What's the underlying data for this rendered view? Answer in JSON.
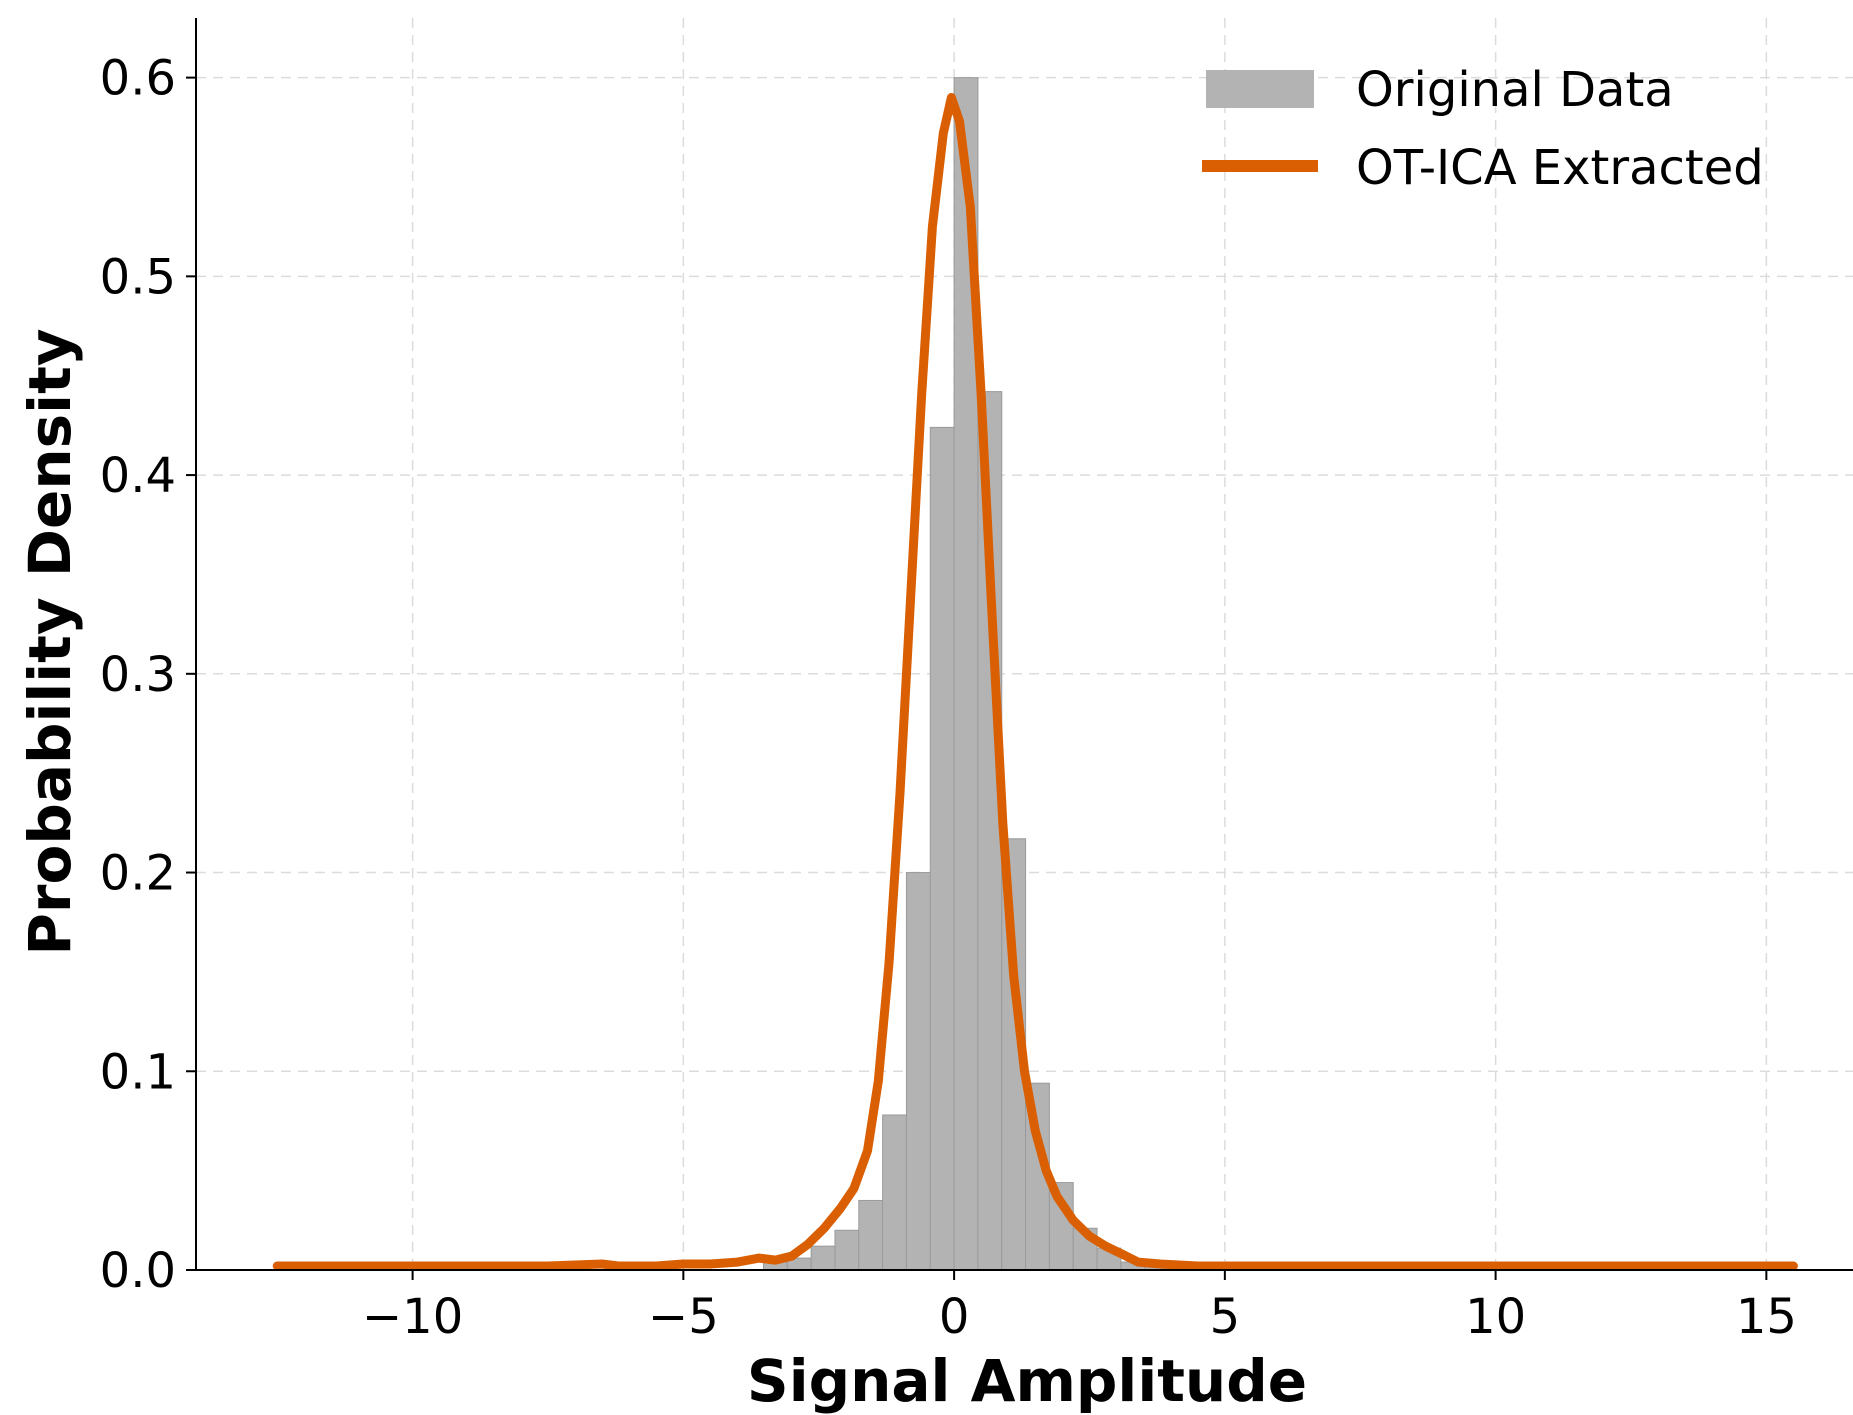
{
  "chart_data": {
    "type": "bar",
    "title": "",
    "xlabel": "Signal Amplitude",
    "ylabel": "Probability Density",
    "xlim": [
      -14,
      16.6
    ],
    "ylim": [
      0,
      0.63
    ],
    "xticks": [
      -10,
      -5,
      0,
      5,
      10,
      15
    ],
    "xtick_labels": [
      "−10",
      "−5",
      "0",
      "5",
      "10",
      "15"
    ],
    "yticks": [
      0.0,
      0.1,
      0.2,
      0.3,
      0.4,
      0.5,
      0.6
    ],
    "ytick_labels": [
      "0.0",
      "0.1",
      "0.2",
      "0.3",
      "0.4",
      "0.5",
      "0.6"
    ],
    "grid": true,
    "legend_position": "top-right",
    "colors": {
      "histogram": "#b3b3b3",
      "histogram_edge": "#9a9a9a",
      "curve": "#d95f02"
    },
    "series": [
      {
        "name": "Original Data",
        "type": "histogram",
        "bin_width": 0.44,
        "bins": [
          {
            "x0": -3.52,
            "value": 0.004
          },
          {
            "x0": -3.08,
            "value": 0.006
          },
          {
            "x0": -2.64,
            "value": 0.012
          },
          {
            "x0": -2.2,
            "value": 0.02
          },
          {
            "x0": -1.76,
            "value": 0.035
          },
          {
            "x0": -1.32,
            "value": 0.078
          },
          {
            "x0": -0.88,
            "value": 0.2
          },
          {
            "x0": -0.44,
            "value": 0.424
          },
          {
            "x0": 0.0,
            "value": 0.6
          },
          {
            "x0": 0.44,
            "value": 0.442
          },
          {
            "x0": 0.88,
            "value": 0.217
          },
          {
            "x0": 1.32,
            "value": 0.094
          },
          {
            "x0": 1.76,
            "value": 0.044
          },
          {
            "x0": 2.2,
            "value": 0.021
          },
          {
            "x0": 2.64,
            "value": 0.011
          },
          {
            "x0": 3.08,
            "value": 0.004
          },
          {
            "x0": 3.52,
            "value": 0.002
          }
        ]
      },
      {
        "name": "OT-ICA Extracted",
        "type": "line",
        "points": [
          [
            -12.5,
            0.002
          ],
          [
            -11.5,
            0.002
          ],
          [
            -10.5,
            0.002
          ],
          [
            -9.5,
            0.002
          ],
          [
            -8.5,
            0.002
          ],
          [
            -7.5,
            0.002
          ],
          [
            -6.5,
            0.003
          ],
          [
            -6.2,
            0.002
          ],
          [
            -5.5,
            0.002
          ],
          [
            -5.0,
            0.003
          ],
          [
            -4.5,
            0.003
          ],
          [
            -4.0,
            0.004
          ],
          [
            -3.6,
            0.006
          ],
          [
            -3.3,
            0.005
          ],
          [
            -3.0,
            0.007
          ],
          [
            -2.7,
            0.013
          ],
          [
            -2.4,
            0.021
          ],
          [
            -2.1,
            0.031
          ],
          [
            -1.85,
            0.041
          ],
          [
            -1.6,
            0.06
          ],
          [
            -1.4,
            0.095
          ],
          [
            -1.2,
            0.155
          ],
          [
            -1.0,
            0.24
          ],
          [
            -0.8,
            0.34
          ],
          [
            -0.6,
            0.44
          ],
          [
            -0.4,
            0.525
          ],
          [
            -0.2,
            0.572
          ],
          [
            -0.05,
            0.59
          ],
          [
            0.1,
            0.578
          ],
          [
            0.3,
            0.535
          ],
          [
            0.5,
            0.44
          ],
          [
            0.7,
            0.33
          ],
          [
            0.9,
            0.225
          ],
          [
            1.1,
            0.148
          ],
          [
            1.3,
            0.1
          ],
          [
            1.5,
            0.07
          ],
          [
            1.7,
            0.05
          ],
          [
            1.9,
            0.037
          ],
          [
            2.2,
            0.025
          ],
          [
            2.5,
            0.017
          ],
          [
            2.8,
            0.012
          ],
          [
            3.1,
            0.008
          ],
          [
            3.4,
            0.004
          ],
          [
            3.8,
            0.003
          ],
          [
            4.5,
            0.002
          ],
          [
            5.5,
            0.002
          ],
          [
            6.5,
            0.002
          ],
          [
            7.5,
            0.002
          ],
          [
            8.5,
            0.002
          ],
          [
            9.5,
            0.002
          ],
          [
            10.5,
            0.002
          ],
          [
            11.5,
            0.002
          ],
          [
            12.5,
            0.002
          ],
          [
            13.5,
            0.002
          ],
          [
            14.5,
            0.002
          ],
          [
            15.5,
            0.002
          ]
        ]
      }
    ]
  }
}
